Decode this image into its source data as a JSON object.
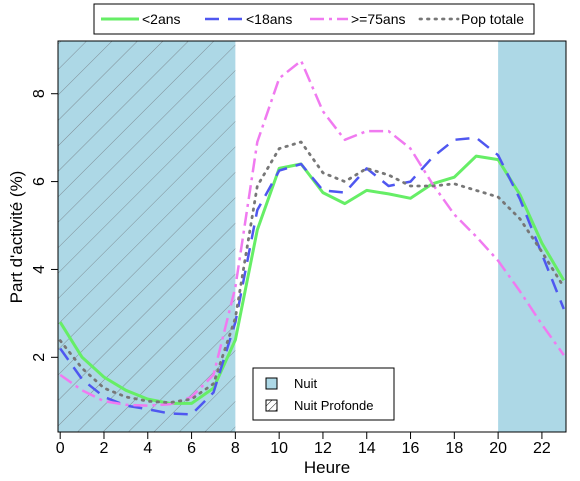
{
  "chart_data": {
    "type": "line",
    "xlabel": "Heure",
    "ylabel": "Part d'activité (%)",
    "xlim": [
      -0.1,
      23.1
    ],
    "ylim": [
      0.3,
      9.2
    ],
    "x_ticks": [
      0,
      2,
      4,
      6,
      8,
      10,
      12,
      14,
      16,
      18,
      20,
      22
    ],
    "y_ticks": [
      2,
      4,
      6,
      8
    ],
    "x": [
      0,
      1,
      2,
      3,
      4,
      5,
      6,
      7,
      8,
      9,
      10,
      11,
      12,
      13,
      14,
      15,
      16,
      17,
      18,
      19,
      20,
      21,
      22,
      23
    ],
    "shaded_regions": [
      {
        "label": "Nuit",
        "from": -0.1,
        "to": 8,
        "hatched": true
      },
      {
        "label": "",
        "from": 20,
        "to": 23.1,
        "hatched": false
      }
    ],
    "series": [
      {
        "name": "<2ans",
        "color": "#66ee66",
        "dash": "",
        "width": 3,
        "values": [
          2.8,
          2.0,
          1.55,
          1.25,
          1.05,
          0.95,
          0.95,
          1.3,
          2.4,
          4.9,
          6.3,
          6.4,
          5.75,
          5.5,
          5.8,
          5.72,
          5.62,
          5.95,
          6.1,
          6.58,
          6.5,
          5.7,
          4.6,
          3.75
        ]
      },
      {
        "name": "<18ans",
        "color": "#4f57f0",
        "dash": "14,9",
        "width": 2.5,
        "values": [
          2.2,
          1.5,
          1.1,
          0.9,
          0.82,
          0.72,
          0.7,
          1.2,
          2.8,
          5.35,
          6.25,
          6.4,
          5.8,
          5.75,
          6.3,
          5.9,
          6.0,
          6.55,
          6.95,
          7.0,
          6.6,
          5.6,
          4.35,
          3.1
        ]
      },
      {
        "name": ">=75ans",
        "color": "#f07af0",
        "dash": "14,5,3,5",
        "width": 2.5,
        "values": [
          1.6,
          1.25,
          1.0,
          0.92,
          0.9,
          0.93,
          1.1,
          1.6,
          3.6,
          6.9,
          8.35,
          8.75,
          7.6,
          6.95,
          7.15,
          7.15,
          6.75,
          5.95,
          5.25,
          4.75,
          4.2,
          3.5,
          2.75,
          2.05
        ]
      },
      {
        "name": "Pop totale",
        "color": "#777777",
        "dash": "1.5,6",
        "width": 2.8,
        "values": [
          2.38,
          1.75,
          1.3,
          1.1,
          1.0,
          0.97,
          1.05,
          1.4,
          2.9,
          5.9,
          6.75,
          6.9,
          6.2,
          6.0,
          6.3,
          6.15,
          5.9,
          5.9,
          5.95,
          5.8,
          5.65,
          5.15,
          4.4,
          3.6
        ]
      }
    ],
    "legend": {
      "placement": "top-outside"
    },
    "region_legend": {
      "placement": "bottom-center",
      "items": [
        {
          "label": "Nuit",
          "fill": "#add8e6",
          "hatched": false
        },
        {
          "label": "Nuit Profonde",
          "fill": "#ffffff",
          "hatched": true
        }
      ]
    },
    "colors": {
      "night": "#add8e6",
      "hatch": "#7f8e96"
    }
  }
}
